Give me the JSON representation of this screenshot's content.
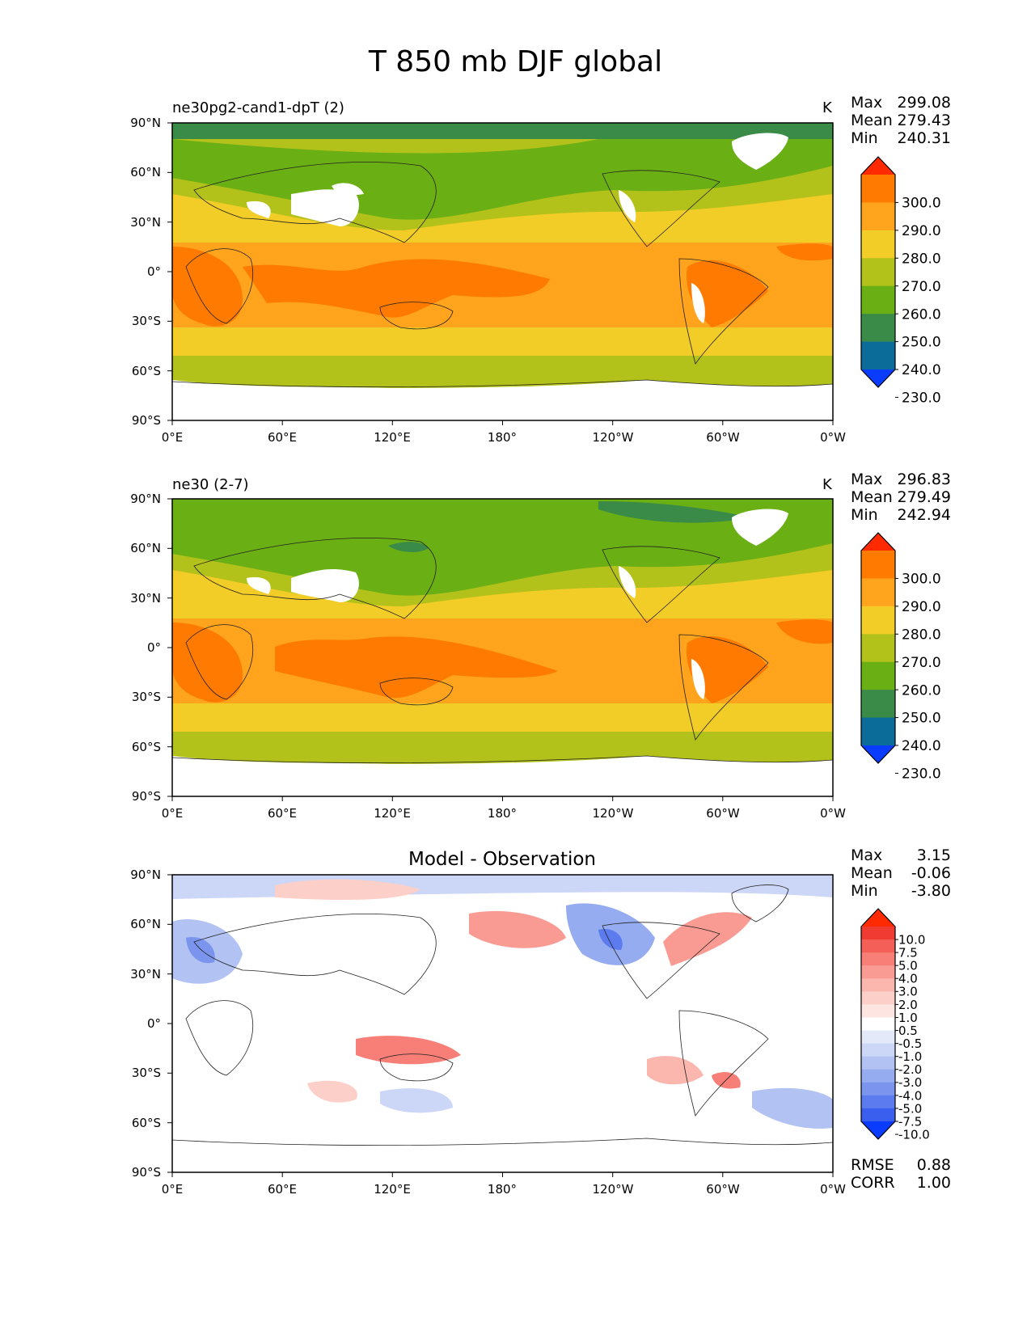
{
  "figure": {
    "title": "T 850 mb DJF global"
  },
  "axes": {
    "lat_labels": [
      "90°N",
      "60°N",
      "30°N",
      "0°",
      "30°S",
      "60°S",
      "90°S"
    ],
    "lon_labels": [
      "0°E",
      "60°E",
      "120°E",
      "180°",
      "120°W",
      "60°W",
      "0°W"
    ]
  },
  "stat_labels": {
    "max": "Max",
    "mean": "Mean",
    "min": "Min",
    "rmse": "RMSE",
    "corr": "CORR"
  },
  "panels": [
    {
      "left_label": "ne30pg2-cand1-dpT (2)",
      "units": "K",
      "max": "299.08",
      "mean": "279.43",
      "min": "240.31"
    },
    {
      "left_label": "ne30 (2-7)",
      "units": "K",
      "max": "296.83",
      "mean": "279.49",
      "min": "242.94"
    },
    {
      "center_title": "Model - Observation",
      "max": "3.15",
      "mean": "-0.06",
      "min": "-3.80",
      "rmse": "0.88",
      "corr": "1.00"
    }
  ],
  "colorbars": {
    "field_ticks": [
      "300.0",
      "290.0",
      "280.0",
      "270.0",
      "260.0",
      "250.0",
      "240.0",
      "230.0"
    ],
    "field_colors": [
      "#ff2a00",
      "#ff7a00",
      "#ffa41c",
      "#f2cc27",
      "#b3c21b",
      "#6aaf14",
      "#3a8b47",
      "#0b6c9a",
      "#0a3cff"
    ],
    "diff_ticks": [
      "10.0",
      "7.5",
      "5.0",
      "4.0",
      "3.0",
      "2.0",
      "1.0",
      "0.5",
      "-0.5",
      "-1.0",
      "-2.0",
      "-3.0",
      "-4.0",
      "-5.0",
      "-7.5",
      "-10.0"
    ],
    "diff_colors": [
      "#ff2a00",
      "#f03b32",
      "#f45f58",
      "#f77f77",
      "#f99b93",
      "#fbb6ae",
      "#fcd0c8",
      "#fde6e1",
      "#ffffff",
      "#e4e9fa",
      "#ccd6f6",
      "#b1c2f3",
      "#96acf1",
      "#7b95ee",
      "#5b7bee",
      "#3a5fef",
      "#0a3cff"
    ]
  },
  "chart_data": [
    {
      "type": "heatmap",
      "title": "ne30pg2-cand1-dpT (2)",
      "units": "K",
      "xlim": [
        0,
        360
      ],
      "ylim": [
        -90,
        90
      ],
      "levels": [
        230,
        240,
        250,
        260,
        270,
        280,
        290,
        300
      ],
      "max": 299.08,
      "mean": 279.43,
      "min": 240.31
    },
    {
      "type": "heatmap",
      "title": "ne30 (2-7)",
      "units": "K",
      "xlim": [
        0,
        360
      ],
      "ylim": [
        -90,
        90
      ],
      "levels": [
        230,
        240,
        250,
        260,
        270,
        280,
        290,
        300
      ],
      "max": 296.83,
      "mean": 279.49,
      "min": 242.94
    },
    {
      "type": "heatmap",
      "title": "Model - Observation",
      "xlim": [
        0,
        360
      ],
      "ylim": [
        -90,
        90
      ],
      "levels": [
        -10,
        -7.5,
        -5,
        -4,
        -3,
        -2,
        -1,
        -0.5,
        0.5,
        1,
        2,
        3,
        4,
        5,
        7.5,
        10
      ],
      "max": 3.15,
      "mean": -0.06,
      "min": -3.8,
      "rmse": 0.88,
      "corr": 1.0
    }
  ]
}
